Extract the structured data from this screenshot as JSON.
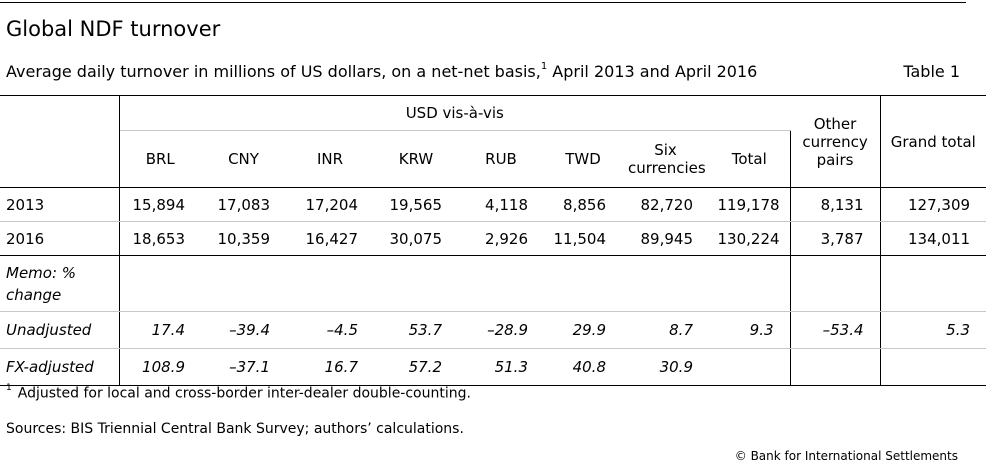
{
  "title": "Global NDF turnover",
  "subtitle": "Average daily turnover in millions of US dollars, on a net-net basis,",
  "subtitle_note": "1",
  "subtitle_suffix": " April 2013 and April 2016",
  "table_label": "Table 1",
  "header": {
    "group": "USD vis-à-vis",
    "other": "Other currency pairs",
    "grand": "Grand total",
    "columns": [
      "BRL",
      "CNY",
      "INR",
      "KRW",
      "RUB",
      "TWD",
      "Six currencies",
      "Total"
    ]
  },
  "rows": [
    {
      "label": "2013",
      "values": [
        "15,894",
        "17,083",
        "17,204",
        "19,565",
        "4,118",
        "8,856",
        "82,720",
        "119,178"
      ],
      "other": "8,131",
      "grand": "127,309"
    },
    {
      "label": "2016",
      "values": [
        "18,653",
        "10,359",
        "16,427",
        "30,075",
        "2,926",
        "11,504",
        "89,945",
        "130,224"
      ],
      "other": "3,787",
      "grand": "134,011"
    }
  ],
  "memo_label": "Memo: % change",
  "pct_rows": [
    {
      "label": "Unadjusted",
      "values": [
        "17.4",
        "–39.4",
        "–4.5",
        "53.7",
        "–28.9",
        "29.9",
        "8.7",
        "9.3"
      ],
      "other": "–53.4",
      "grand": "5.3"
    },
    {
      "label": "FX-adjusted",
      "values": [
        "108.9",
        "–37.1",
        "16.7",
        "57.2",
        "51.3",
        "40.8",
        "30.9",
        ""
      ],
      "other": "",
      "grand": ""
    }
  ],
  "footnote_mark": "1",
  "footnote": "Adjusted for local and cross-border inter-dealer double-counting.",
  "sources": "Sources: BIS Triennial Central Bank Survey; authors’ calculations.",
  "copyright": "© Bank for International Settlements"
}
